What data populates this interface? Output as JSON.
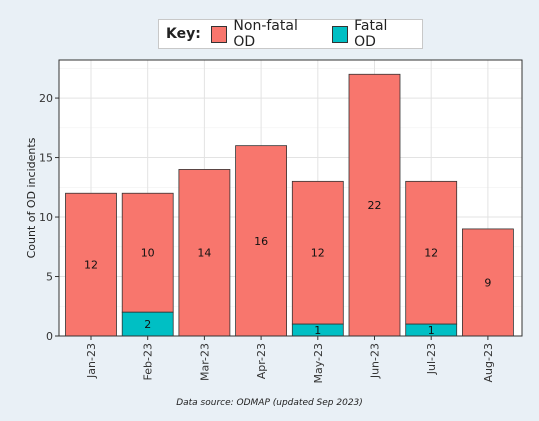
{
  "legend": {
    "title": "Key:",
    "items": [
      {
        "label": "Non-fatal OD",
        "color": "#f8766d"
      },
      {
        "label": "Fatal OD",
        "color": "#00bfc4"
      }
    ]
  },
  "caption": "Data source: ODMAP (updated Sep 2023)",
  "chart_data": {
    "type": "bar",
    "stacked": true,
    "categories": [
      "Jan-23",
      "Feb-23",
      "Mar-23",
      "Apr-23",
      "May-23",
      "Jun-23",
      "Jul-23",
      "Aug-23"
    ],
    "series": [
      {
        "name": "Fatal OD",
        "color": "#00bfc4",
        "values": [
          0,
          2,
          0,
          0,
          1,
          0,
          1,
          0
        ]
      },
      {
        "name": "Non-fatal OD",
        "color": "#f8766d",
        "values": [
          12,
          10,
          14,
          16,
          12,
          22,
          12,
          9
        ]
      }
    ],
    "data_labels": {
      "Non-fatal OD": [
        "12",
        "10",
        "14",
        "16",
        "12",
        "22",
        "12",
        "9"
      ],
      "Fatal OD": [
        "",
        "2",
        "",
        "",
        "1",
        "",
        "1",
        ""
      ]
    },
    "title": "",
    "xlabel": "",
    "ylabel": "Count of OD incidents",
    "ylim": [
      0,
      23.2
    ],
    "yticks": [
      0,
      5,
      10,
      15,
      20
    ],
    "grid": true,
    "legend_position": "top"
  }
}
